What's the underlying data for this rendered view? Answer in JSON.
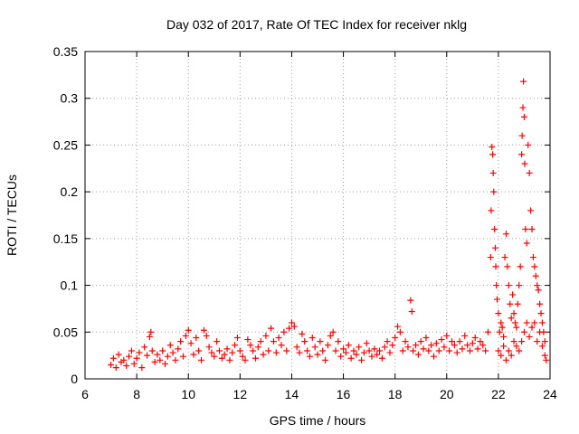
{
  "chart_data": {
    "type": "scatter",
    "title": "Day 032 of 2017, Rate Of TEC Index for receiver nklg",
    "xlabel": "GPS time / hours",
    "ylabel": "ROTI / TECUs",
    "xlim": [
      6,
      24
    ],
    "ylim": [
      0,
      0.35
    ],
    "x_ticks": [
      6,
      8,
      10,
      12,
      14,
      16,
      18,
      20,
      22,
      24
    ],
    "x_tick_labels": [
      "6",
      "8",
      "10",
      "12",
      "14",
      "16",
      "18",
      "20",
      "22",
      "24"
    ],
    "y_ticks": [
      0,
      0.05,
      0.1,
      0.15,
      0.2,
      0.25,
      0.3,
      0.35
    ],
    "y_tick_labels": [
      "0",
      "0.05",
      "0.1",
      "0.15",
      "0.2",
      "0.25",
      "0.3",
      "0.35"
    ],
    "grid": true,
    "marker": "+",
    "marker_color": "#ff0000",
    "series": [
      {
        "name": "ROTI",
        "color": "#ff0000",
        "points": [
          [
            7.0,
            0.015
          ],
          [
            7.1,
            0.022
          ],
          [
            7.2,
            0.012
          ],
          [
            7.3,
            0.026
          ],
          [
            7.4,
            0.018
          ],
          [
            7.5,
            0.02
          ],
          [
            7.6,
            0.014
          ],
          [
            7.7,
            0.024
          ],
          [
            7.8,
            0.03
          ],
          [
            7.9,
            0.016
          ],
          [
            8.0,
            0.022
          ],
          [
            8.1,
            0.028
          ],
          [
            8.2,
            0.012
          ],
          [
            8.3,
            0.034
          ],
          [
            8.4,
            0.025
          ],
          [
            8.5,
            0.045
          ],
          [
            8.55,
            0.05
          ],
          [
            8.6,
            0.03
          ],
          [
            8.7,
            0.018
          ],
          [
            8.8,
            0.026
          ],
          [
            8.9,
            0.02
          ],
          [
            9.0,
            0.03
          ],
          [
            9.1,
            0.016
          ],
          [
            9.2,
            0.024
          ],
          [
            9.3,
            0.036
          ],
          [
            9.4,
            0.028
          ],
          [
            9.5,
            0.02
          ],
          [
            9.6,
            0.032
          ],
          [
            9.7,
            0.04
          ],
          [
            9.8,
            0.024
          ],
          [
            9.9,
            0.046
          ],
          [
            10.0,
            0.052
          ],
          [
            10.1,
            0.038
          ],
          [
            10.2,
            0.026
          ],
          [
            10.3,
            0.044
          ],
          [
            10.4,
            0.03
          ],
          [
            10.5,
            0.02
          ],
          [
            10.6,
            0.052
          ],
          [
            10.7,
            0.046
          ],
          [
            10.8,
            0.034
          ],
          [
            10.9,
            0.028
          ],
          [
            11.0,
            0.024
          ],
          [
            11.1,
            0.04
          ],
          [
            11.2,
            0.03
          ],
          [
            11.3,
            0.022
          ],
          [
            11.4,
            0.026
          ],
          [
            11.5,
            0.032
          ],
          [
            11.6,
            0.02
          ],
          [
            11.7,
            0.028
          ],
          [
            11.8,
            0.036
          ],
          [
            11.9,
            0.044
          ],
          [
            12.0,
            0.03
          ],
          [
            12.1,
            0.024
          ],
          [
            12.2,
            0.02
          ],
          [
            12.3,
            0.042
          ],
          [
            12.4,
            0.036
          ],
          [
            12.5,
            0.03
          ],
          [
            12.6,
            0.022
          ],
          [
            12.7,
            0.034
          ],
          [
            12.8,
            0.04
          ],
          [
            12.9,
            0.026
          ],
          [
            13.0,
            0.046
          ],
          [
            13.1,
            0.03
          ],
          [
            13.2,
            0.054
          ],
          [
            13.3,
            0.04
          ],
          [
            13.4,
            0.028
          ],
          [
            13.5,
            0.044
          ],
          [
            13.6,
            0.036
          ],
          [
            13.7,
            0.05
          ],
          [
            13.8,
            0.03
          ],
          [
            13.9,
            0.054
          ],
          [
            14.0,
            0.06
          ],
          [
            14.1,
            0.056
          ],
          [
            14.2,
            0.034
          ],
          [
            14.3,
            0.028
          ],
          [
            14.4,
            0.048
          ],
          [
            14.5,
            0.04
          ],
          [
            14.6,
            0.03
          ],
          [
            14.7,
            0.024
          ],
          [
            14.8,
            0.044
          ],
          [
            14.9,
            0.034
          ],
          [
            15.0,
            0.026
          ],
          [
            15.1,
            0.04
          ],
          [
            15.2,
            0.03
          ],
          [
            15.3,
            0.02
          ],
          [
            15.4,
            0.036
          ],
          [
            15.5,
            0.046
          ],
          [
            15.6,
            0.05
          ],
          [
            15.7,
            0.03
          ],
          [
            15.8,
            0.04
          ],
          [
            15.9,
            0.024
          ],
          [
            16.0,
            0.032
          ],
          [
            16.1,
            0.028
          ],
          [
            16.2,
            0.036
          ],
          [
            16.3,
            0.022
          ],
          [
            16.4,
            0.03
          ],
          [
            16.5,
            0.026
          ],
          [
            16.6,
            0.034
          ],
          [
            16.7,
            0.02
          ],
          [
            16.8,
            0.028
          ],
          [
            16.9,
            0.038
          ],
          [
            17.0,
            0.03
          ],
          [
            17.1,
            0.024
          ],
          [
            17.2,
            0.032
          ],
          [
            17.3,
            0.026
          ],
          [
            17.4,
            0.03
          ],
          [
            17.5,
            0.022
          ],
          [
            17.6,
            0.034
          ],
          [
            17.7,
            0.04
          ],
          [
            17.8,
            0.028
          ],
          [
            17.9,
            0.036
          ],
          [
            18.0,
            0.044
          ],
          [
            18.1,
            0.056
          ],
          [
            18.2,
            0.05
          ],
          [
            18.3,
            0.03
          ],
          [
            18.4,
            0.04
          ],
          [
            18.5,
            0.034
          ],
          [
            18.6,
            0.084
          ],
          [
            18.65,
            0.072
          ],
          [
            18.7,
            0.03
          ],
          [
            18.8,
            0.036
          ],
          [
            18.9,
            0.026
          ],
          [
            19.0,
            0.04
          ],
          [
            19.1,
            0.032
          ],
          [
            19.2,
            0.044
          ],
          [
            19.3,
            0.03
          ],
          [
            19.4,
            0.036
          ],
          [
            19.5,
            0.024
          ],
          [
            19.6,
            0.038
          ],
          [
            19.7,
            0.03
          ],
          [
            19.8,
            0.042
          ],
          [
            19.9,
            0.034
          ],
          [
            20.0,
            0.046
          ],
          [
            20.1,
            0.03
          ],
          [
            20.2,
            0.04
          ],
          [
            20.3,
            0.036
          ],
          [
            20.4,
            0.028
          ],
          [
            20.5,
            0.04
          ],
          [
            20.6,
            0.032
          ],
          [
            20.7,
            0.046
          ],
          [
            20.8,
            0.036
          ],
          [
            20.9,
            0.03
          ],
          [
            21.0,
            0.038
          ],
          [
            21.1,
            0.044
          ],
          [
            21.2,
            0.032
          ],
          [
            21.3,
            0.04
          ],
          [
            21.4,
            0.036
          ],
          [
            21.5,
            0.03
          ],
          [
            21.6,
            0.05
          ],
          [
            21.7,
            0.13
          ],
          [
            21.72,
            0.18
          ],
          [
            21.75,
            0.248
          ],
          [
            21.78,
            0.24
          ],
          [
            21.8,
            0.22
          ],
          [
            21.82,
            0.2
          ],
          [
            21.85,
            0.16
          ],
          [
            21.88,
            0.14
          ],
          [
            21.9,
            0.12
          ],
          [
            21.92,
            0.1
          ],
          [
            21.95,
            0.085
          ],
          [
            22.0,
            0.07
          ],
          [
            22.05,
            0.05
          ],
          [
            22.1,
            0.06
          ],
          [
            22.15,
            0.055
          ],
          [
            22.2,
            0.045
          ],
          [
            22.25,
            0.13
          ],
          [
            22.3,
            0.155
          ],
          [
            22.35,
            0.12
          ],
          [
            22.4,
            0.1
          ],
          [
            22.45,
            0.08
          ],
          [
            22.5,
            0.065
          ],
          [
            22.55,
            0.09
          ],
          [
            22.6,
            0.07
          ],
          [
            22.65,
            0.06
          ],
          [
            22.7,
            0.055
          ],
          [
            22.75,
            0.08
          ],
          [
            22.8,
            0.1
          ],
          [
            22.85,
            0.12
          ],
          [
            22.9,
            0.24
          ],
          [
            22.92,
            0.26
          ],
          [
            22.95,
            0.29
          ],
          [
            22.97,
            0.318
          ],
          [
            23.0,
            0.28
          ],
          [
            23.02,
            0.23
          ],
          [
            23.05,
            0.16
          ],
          [
            23.1,
            0.145
          ],
          [
            23.15,
            0.25
          ],
          [
            23.2,
            0.22
          ],
          [
            23.25,
            0.18
          ],
          [
            23.3,
            0.16
          ],
          [
            23.35,
            0.13
          ],
          [
            23.4,
            0.12
          ],
          [
            23.45,
            0.11
          ],
          [
            23.5,
            0.1
          ],
          [
            23.55,
            0.095
          ],
          [
            23.6,
            0.08
          ],
          [
            23.65,
            0.07
          ],
          [
            23.7,
            0.06
          ],
          [
            23.75,
            0.05
          ],
          [
            23.8,
            0.04
          ],
          [
            22.0,
            0.03
          ],
          [
            22.1,
            0.025
          ],
          [
            22.2,
            0.035
          ],
          [
            22.3,
            0.02
          ],
          [
            22.4,
            0.03
          ],
          [
            22.5,
            0.025
          ],
          [
            22.6,
            0.04
          ],
          [
            22.7,
            0.035
          ],
          [
            22.8,
            0.03
          ],
          [
            22.9,
            0.04
          ],
          [
            23.0,
            0.05
          ],
          [
            23.1,
            0.06
          ],
          [
            23.2,
            0.045
          ],
          [
            23.3,
            0.055
          ],
          [
            23.4,
            0.06
          ],
          [
            23.5,
            0.04
          ],
          [
            23.6,
            0.05
          ],
          [
            23.7,
            0.035
          ],
          [
            23.8,
            0.025
          ],
          [
            23.85,
            0.02
          ]
        ]
      }
    ]
  }
}
